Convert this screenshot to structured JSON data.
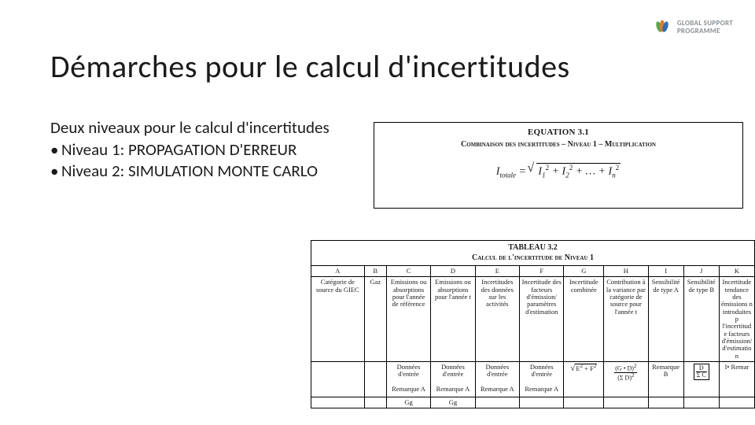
{
  "logo": {
    "line1": "GLOBAL SUPPORT",
    "line2": "PROGRAMME",
    "leaf_colors": [
      "#5aa64a",
      "#e07a2e",
      "#2f6eb0"
    ]
  },
  "title": "Démarches pour le calcul d'incertitudes",
  "intro": "Deux niveaux pour le calcul d'incertitudes",
  "bullets": [
    "Niveau 1: PROPAGATION D'ERREUR",
    "Niveau 2: SIMULATION MONTE CARLO"
  ],
  "equation_box": {
    "title": "EQUATION 3.1",
    "subtitle": "Combinaison des incertitudes – Niveau 1 – Multiplication",
    "lhs_symbol": "I",
    "lhs_sub": "totale",
    "terms": [
      "I₁²",
      "I₂²",
      "…",
      "Iₙ²"
    ]
  },
  "table": {
    "caption_line1": "TABLEAU 3.2",
    "caption_line2": "Calcul de l'incertitude de Niveau 1",
    "col_letters": [
      "A",
      "B",
      "C",
      "D",
      "E",
      "F",
      "G",
      "H",
      "I",
      "J",
      "K"
    ],
    "col_widths_pct": [
      12,
      5,
      10,
      10,
      10,
      10,
      9,
      10,
      8,
      8,
      8
    ],
    "labels": [
      "Catégorie de source du GIEC",
      "Gaz",
      "Emissions ou absorptions pour l'année de référence",
      "Emissions ou absorptions pour l'année t",
      "Incertitudes des données sur les activités",
      "Incertitude des facteurs d'émission/ paramètres d'estimation",
      "Incertitude combinée",
      "Contribution à la variance par catégorie de source pour l'année t",
      "Sensibilité de type A",
      "Sensibilité de type B",
      "Incertitude tendance des émissions n introduites p l'incertitude facteurs d'émission/ d'estimation"
    ],
    "formula_row": [
      "",
      "",
      "Données d'entrée\n\nRemarque A",
      "Données d'entrée\n\nRemarque A",
      "Données d'entrée\n\nRemarque A",
      "Données d'entrée\n\nRemarque A",
      "sqrt_e2f2",
      "frac_gd_sd",
      "Remarque B",
      "frac_d_sc",
      "I• Remar"
    ],
    "bottom_stub": [
      "",
      "",
      "Gg",
      "Gg",
      "",
      "",
      "",
      "",
      "",
      "",
      ""
    ]
  }
}
